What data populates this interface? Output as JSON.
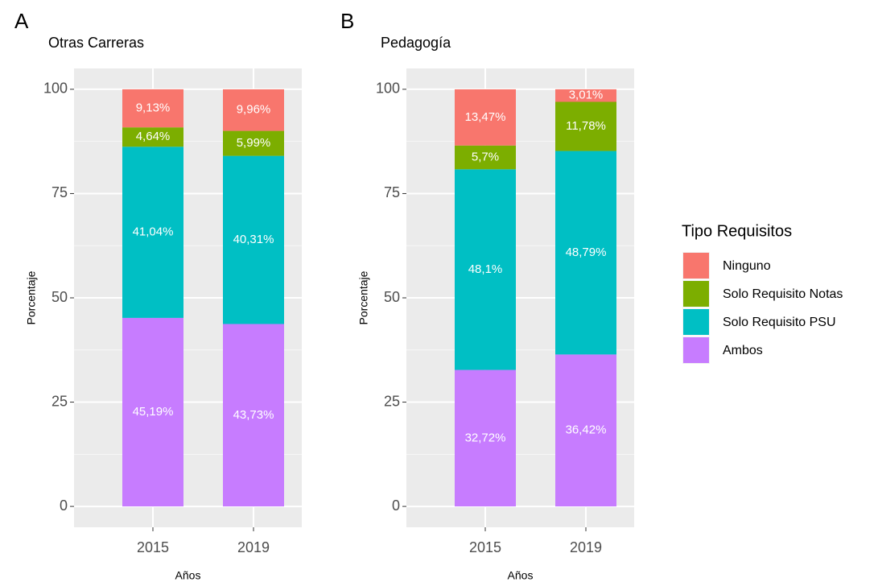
{
  "chart_data": [
    {
      "type": "bar",
      "stacked": true,
      "panel_label": "A",
      "title": "Otras Carreras",
      "x_label": "Años",
      "y_label": "Porcentaje",
      "legend_title": "Tipo Requisitos",
      "categories": [
        "2015",
        "2019"
      ],
      "series": [
        {
          "name": "Ninguno",
          "color": "#f8766d",
          "values": [
            9.13,
            9.96
          ],
          "value_labels": [
            "9,13%",
            "9,96%"
          ]
        },
        {
          "name": "Solo Requisito Notas",
          "color": "#7cae00",
          "values": [
            4.64,
            5.99
          ],
          "value_labels": [
            "4,64%",
            "5,99%"
          ]
        },
        {
          "name": "Solo Requisito PSU",
          "color": "#00bfc4",
          "values": [
            41.04,
            40.31
          ],
          "value_labels": [
            "41,04%",
            "40,31%"
          ]
        },
        {
          "name": "Ambos",
          "color": "#c77cff",
          "values": [
            45.19,
            43.73
          ],
          "value_labels": [
            "45,19%",
            "43,73%"
          ]
        }
      ],
      "ylim": [
        -5,
        105
      ],
      "yticks": [
        0,
        25,
        50,
        75,
        100
      ],
      "grid": true
    },
    {
      "type": "bar",
      "stacked": true,
      "panel_label": "B",
      "title": "Pedagogía",
      "x_label": "Años",
      "y_label": "Porcentaje",
      "categories": [
        "2015",
        "2019"
      ],
      "series": [
        {
          "color": "#f8766d",
          "values": [
            13.47,
            3.01
          ],
          "value_labels": [
            "13,47%",
            "3,01%"
          ]
        },
        {
          "color": "#7cae00",
          "values": [
            5.7,
            11.78
          ],
          "value_labels": [
            "5,7%",
            "11,78%"
          ]
        },
        {
          "color": "#00bfc4",
          "values": [
            48.1,
            48.79
          ],
          "value_labels": [
            "48,1%",
            "48,79%"
          ]
        },
        {
          "color": "#c77cff",
          "values": [
            32.72,
            36.42
          ],
          "value_labels": [
            "32,72%",
            "36,42%"
          ]
        }
      ],
      "ylim": [
        -5,
        105
      ],
      "yticks": [
        0,
        25,
        50,
        75,
        100
      ],
      "grid": true
    }
  ]
}
